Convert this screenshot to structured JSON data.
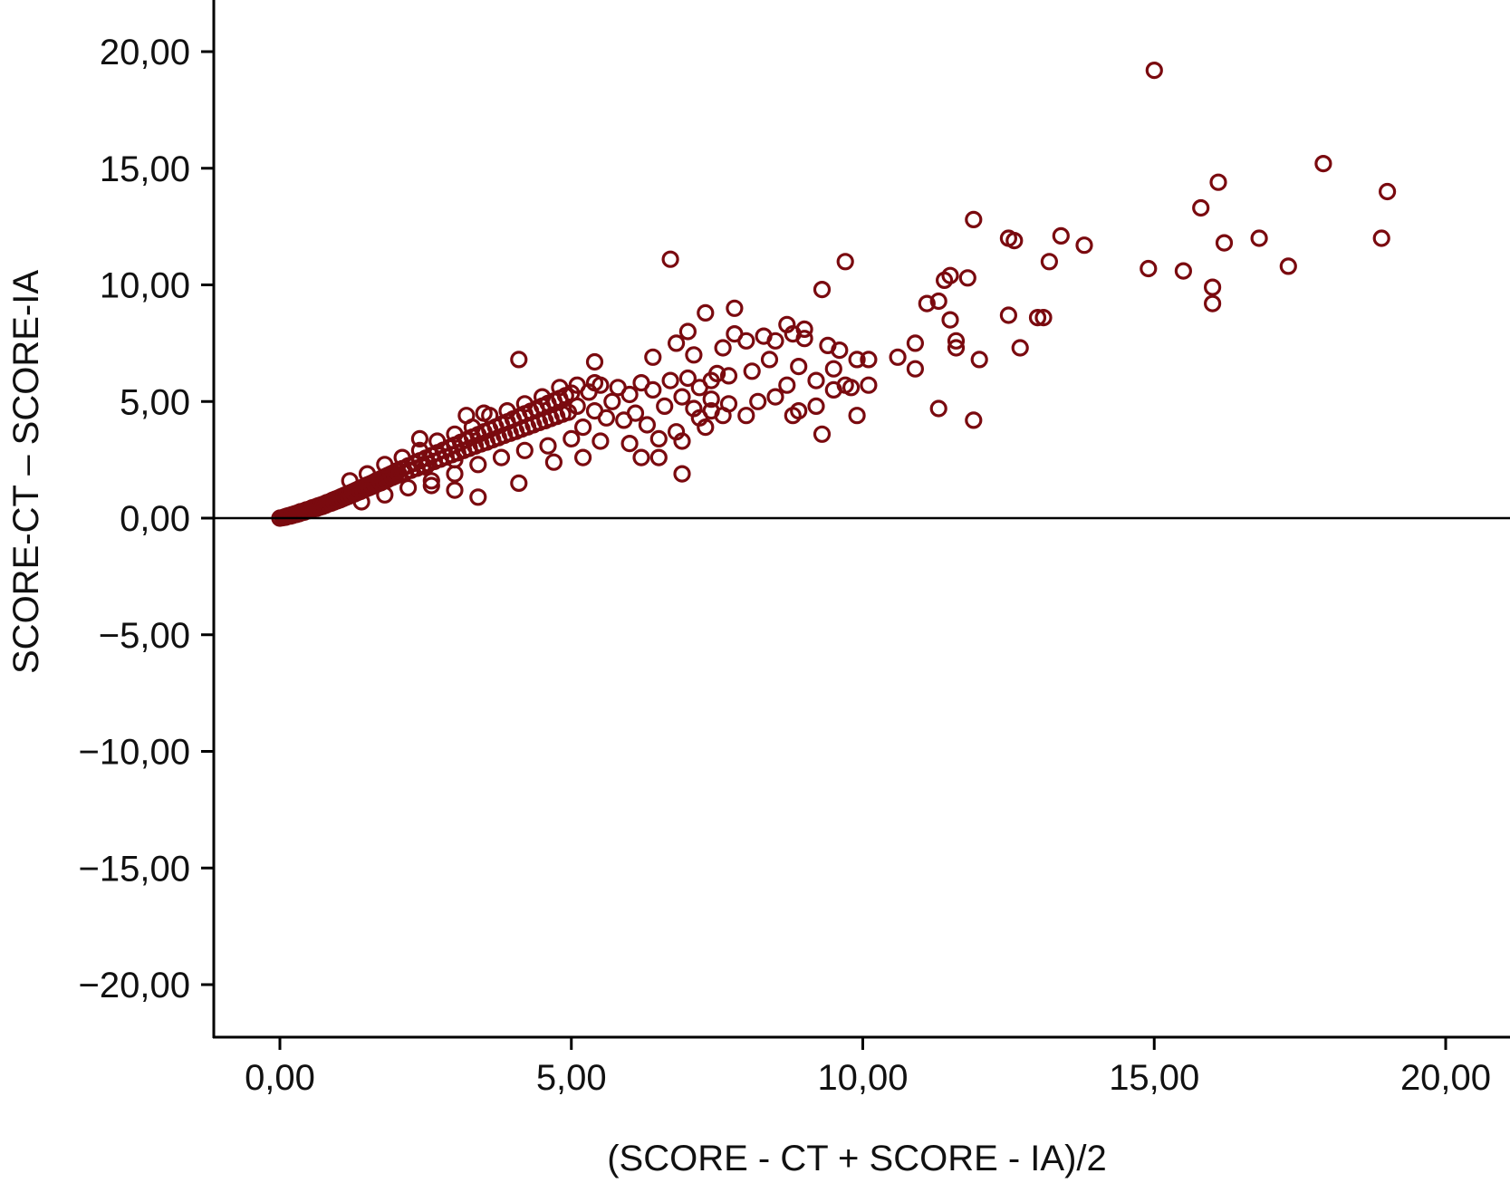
{
  "chart_data": {
    "type": "scatter",
    "title": "",
    "xlabel": "(SCORE - CT + SCORE - IA)/2",
    "ylabel": "SCORE-CT – SCORE-IA",
    "xlim": [
      -1.1,
      21.1
    ],
    "ylim": [
      -22.2,
      22.2
    ],
    "x_ticks": [
      {
        "value": 0,
        "label": "0,00"
      },
      {
        "value": 5,
        "label": "5,00"
      },
      {
        "value": 10,
        "label": "10,00"
      },
      {
        "value": 15,
        "label": "15,00"
      },
      {
        "value": 20,
        "label": "20,00"
      }
    ],
    "y_ticks": [
      {
        "value": 20,
        "label": "20,00"
      },
      {
        "value": 15,
        "label": "15,00"
      },
      {
        "value": 10,
        "label": "10,00"
      },
      {
        "value": 5,
        "label": "5,00"
      },
      {
        "value": 0,
        "label": "0,00"
      },
      {
        "value": -5,
        "label": "−5,00"
      },
      {
        "value": -10,
        "label": "−10,00"
      },
      {
        "value": -15,
        "label": "−15,00"
      },
      {
        "value": -20,
        "label": "−20,00"
      }
    ],
    "reference_line": {
      "y": 0
    },
    "marker": "open-circle",
    "marker_color": "#7a0a0f",
    "grid": false,
    "legend": "none",
    "points": [
      [
        0.0,
        0.0
      ],
      [
        0.05,
        0.02
      ],
      [
        0.08,
        0.05
      ],
      [
        0.1,
        0.04
      ],
      [
        0.12,
        0.08
      ],
      [
        0.15,
        0.1
      ],
      [
        0.18,
        0.09
      ],
      [
        0.2,
        0.14
      ],
      [
        0.22,
        0.12
      ],
      [
        0.25,
        0.18
      ],
      [
        0.28,
        0.16
      ],
      [
        0.3,
        0.22
      ],
      [
        0.33,
        0.19
      ],
      [
        0.35,
        0.27
      ],
      [
        0.38,
        0.24
      ],
      [
        0.4,
        0.3
      ],
      [
        0.42,
        0.26
      ],
      [
        0.45,
        0.35
      ],
      [
        0.48,
        0.31
      ],
      [
        0.5,
        0.38
      ],
      [
        0.53,
        0.34
      ],
      [
        0.55,
        0.44
      ],
      [
        0.58,
        0.4
      ],
      [
        0.6,
        0.47
      ],
      [
        0.63,
        0.42
      ],
      [
        0.65,
        0.52
      ],
      [
        0.68,
        0.47
      ],
      [
        0.7,
        0.56
      ],
      [
        0.73,
        0.5
      ],
      [
        0.75,
        0.6
      ],
      [
        0.78,
        0.55
      ],
      [
        0.8,
        0.66
      ],
      [
        0.83,
        0.61
      ],
      [
        0.85,
        0.7
      ],
      [
        0.88,
        0.64
      ],
      [
        0.9,
        0.76
      ],
      [
        0.93,
        0.69
      ],
      [
        0.95,
        0.81
      ],
      [
        0.98,
        0.74
      ],
      [
        1.0,
        0.86
      ],
      [
        1.03,
        0.78
      ],
      [
        1.05,
        0.92
      ],
      [
        1.08,
        0.84
      ],
      [
        1.1,
        0.97
      ],
      [
        1.13,
        0.89
      ],
      [
        1.15,
        1.02
      ],
      [
        1.18,
        0.94
      ],
      [
        1.2,
        1.08
      ],
      [
        1.23,
        0.99
      ],
      [
        1.25,
        1.13
      ],
      [
        1.28,
        1.04
      ],
      [
        1.3,
        1.19
      ],
      [
        1.33,
        1.1
      ],
      [
        1.35,
        1.25
      ],
      [
        1.38,
        1.14
      ],
      [
        1.4,
        1.3
      ],
      [
        1.43,
        1.2
      ],
      [
        1.45,
        1.36
      ],
      [
        1.48,
        1.26
      ],
      [
        1.5,
        1.42
      ],
      [
        1.53,
        1.31
      ],
      [
        1.55,
        1.47
      ],
      [
        1.58,
        1.36
      ],
      [
        1.6,
        1.53
      ],
      [
        1.63,
        1.43
      ],
      [
        1.65,
        1.6
      ],
      [
        1.68,
        1.47
      ],
      [
        1.7,
        1.65
      ],
      [
        1.73,
        1.52
      ],
      [
        1.75,
        1.71
      ],
      [
        1.78,
        1.58
      ],
      [
        1.8,
        1.77
      ],
      [
        1.83,
        1.63
      ],
      [
        1.85,
        1.83
      ],
      [
        1.88,
        1.7
      ],
      [
        1.9,
        1.89
      ],
      [
        1.93,
        1.75
      ],
      [
        1.95,
        1.95
      ],
      [
        1.98,
        1.8
      ],
      [
        2.0,
        2.02
      ],
      [
        2.05,
        1.86
      ],
      [
        2.1,
        2.12
      ],
      [
        2.15,
        1.96
      ],
      [
        2.2,
        2.24
      ],
      [
        2.25,
        2.05
      ],
      [
        2.3,
        2.35
      ],
      [
        2.35,
        2.14
      ],
      [
        2.4,
        2.46
      ],
      [
        2.45,
        2.24
      ],
      [
        2.5,
        2.57
      ],
      [
        2.55,
        2.33
      ],
      [
        2.6,
        2.68
      ],
      [
        2.65,
        2.43
      ],
      [
        2.7,
        2.8
      ],
      [
        2.75,
        2.53
      ],
      [
        2.8,
        2.91
      ],
      [
        2.85,
        2.62
      ],
      [
        2.9,
        3.02
      ],
      [
        2.95,
        2.72
      ],
      [
        3.0,
        3.13
      ],
      [
        3.05,
        2.8
      ],
      [
        3.1,
        3.25
      ],
      [
        3.15,
        2.9
      ],
      [
        3.2,
        3.36
      ],
      [
        3.25,
        2.99
      ],
      [
        3.3,
        3.47
      ],
      [
        3.35,
        3.09
      ],
      [
        3.4,
        3.58
      ],
      [
        3.45,
        3.18
      ],
      [
        3.5,
        3.7
      ],
      [
        3.55,
        3.26
      ],
      [
        3.6,
        3.8
      ],
      [
        3.65,
        3.36
      ],
      [
        3.7,
        3.91
      ],
      [
        3.75,
        3.45
      ],
      [
        3.8,
        4.02
      ],
      [
        3.85,
        3.55
      ],
      [
        3.9,
        4.13
      ],
      [
        3.95,
        3.64
      ],
      [
        4.0,
        4.25
      ],
      [
        4.05,
        3.72
      ],
      [
        4.1,
        4.35
      ],
      [
        4.15,
        3.82
      ],
      [
        4.2,
        4.47
      ],
      [
        4.25,
        3.91
      ],
      [
        4.3,
        4.58
      ],
      [
        4.35,
        4.0
      ],
      [
        4.4,
        4.69
      ],
      [
        4.45,
        4.1
      ],
      [
        4.5,
        4.8
      ],
      [
        4.55,
        4.18
      ],
      [
        4.6,
        4.92
      ],
      [
        4.65,
        4.27
      ],
      [
        4.7,
        5.02
      ],
      [
        4.75,
        4.36
      ],
      [
        4.8,
        5.13
      ],
      [
        4.85,
        4.46
      ],
      [
        4.9,
        5.25
      ],
      [
        4.95,
        4.54
      ],
      [
        5.0,
        5.36
      ],
      [
        1.2,
        1.6
      ],
      [
        1.5,
        1.9
      ],
      [
        1.8,
        2.3
      ],
      [
        2.1,
        2.6
      ],
      [
        2.4,
        2.9
      ],
      [
        2.7,
        3.3
      ],
      [
        3.0,
        3.6
      ],
      [
        3.3,
        3.9
      ],
      [
        3.6,
        4.4
      ],
      [
        3.9,
        4.6
      ],
      [
        4.2,
        4.9
      ],
      [
        4.5,
        5.2
      ],
      [
        4.8,
        5.6
      ],
      [
        5.1,
        5.7
      ],
      [
        5.4,
        5.8
      ],
      [
        1.4,
        0.7
      ],
      [
        1.8,
        1.0
      ],
      [
        2.2,
        1.3
      ],
      [
        2.6,
        1.6
      ],
      [
        3.0,
        1.9
      ],
      [
        3.4,
        2.3
      ],
      [
        3.8,
        2.6
      ],
      [
        4.2,
        2.9
      ],
      [
        4.6,
        3.1
      ],
      [
        5.0,
        3.4
      ],
      [
        2.4,
        3.4
      ],
      [
        3.2,
        4.4
      ],
      [
        3.5,
        4.5
      ],
      [
        2.5,
        2.2
      ],
      [
        3.0,
        2.5
      ],
      [
        5.1,
        4.8
      ],
      [
        5.2,
        3.9
      ],
      [
        5.3,
        5.4
      ],
      [
        5.4,
        4.6
      ],
      [
        5.5,
        5.7
      ],
      [
        5.6,
        4.3
      ],
      [
        5.7,
        5.0
      ],
      [
        5.8,
        5.6
      ],
      [
        5.9,
        4.2
      ],
      [
        6.0,
        5.3
      ],
      [
        6.1,
        4.5
      ],
      [
        6.2,
        5.8
      ],
      [
        6.3,
        4.0
      ],
      [
        6.4,
        5.5
      ],
      [
        6.5,
        3.4
      ],
      [
        6.6,
        4.8
      ],
      [
        6.7,
        5.9
      ],
      [
        6.8,
        3.7
      ],
      [
        6.9,
        5.2
      ],
      [
        7.0,
        6.0
      ],
      [
        7.1,
        4.7
      ],
      [
        7.2,
        5.6
      ],
      [
        7.3,
        3.9
      ],
      [
        7.4,
        5.1
      ],
      [
        7.5,
        6.2
      ],
      [
        6.7,
        11.1
      ],
      [
        4.1,
        6.8
      ],
      [
        5.4,
        6.7
      ],
      [
        6.4,
        6.9
      ],
      [
        7.3,
        8.8
      ],
      [
        7.8,
        9.0
      ],
      [
        8.7,
        8.3
      ],
      [
        9.0,
        8.1
      ],
      [
        7.0,
        8.0
      ],
      [
        6.8,
        7.5
      ],
      [
        7.1,
        7.0
      ],
      [
        7.6,
        7.3
      ],
      [
        7.8,
        7.9
      ],
      [
        8.0,
        7.6
      ],
      [
        8.3,
        7.8
      ],
      [
        8.5,
        7.6
      ],
      [
        8.8,
        7.9
      ],
      [
        9.3,
        9.8
      ],
      [
        9.7,
        11.0
      ],
      [
        9.0,
        7.7
      ],
      [
        9.4,
        7.4
      ],
      [
        9.6,
        7.2
      ],
      [
        9.9,
        6.8
      ],
      [
        10.1,
        6.8
      ],
      [
        10.6,
        6.9
      ],
      [
        10.9,
        7.5
      ],
      [
        10.9,
        6.4
      ],
      [
        11.3,
        9.3
      ],
      [
        11.5,
        10.4
      ],
      [
        11.8,
        10.3
      ],
      [
        11.5,
        8.5
      ],
      [
        11.6,
        7.6
      ],
      [
        11.6,
        7.3
      ],
      [
        12.0,
        6.8
      ],
      [
        11.9,
        12.8
      ],
      [
        12.5,
        12.0
      ],
      [
        12.6,
        11.9
      ],
      [
        12.5,
        8.7
      ],
      [
        12.7,
        7.3
      ],
      [
        13.0,
        8.6
      ],
      [
        13.1,
        8.6
      ],
      [
        13.2,
        11.0
      ],
      [
        13.4,
        12.1
      ],
      [
        13.8,
        11.7
      ],
      [
        11.3,
        4.7
      ],
      [
        11.9,
        4.2
      ],
      [
        11.4,
        10.2
      ],
      [
        11.1,
        9.2
      ],
      [
        10.1,
        5.7
      ],
      [
        9.7,
        5.7
      ],
      [
        9.3,
        3.6
      ],
      [
        9.9,
        4.4
      ],
      [
        9.2,
        4.8
      ],
      [
        9.5,
        5.5
      ],
      [
        8.9,
        4.6
      ],
      [
        8.8,
        4.4
      ],
      [
        8.0,
        4.4
      ],
      [
        7.6,
        4.4
      ],
      [
        8.2,
        5.0
      ],
      [
        8.5,
        5.2
      ],
      [
        8.7,
        5.7
      ],
      [
        8.9,
        6.5
      ],
      [
        9.2,
        5.9
      ],
      [
        9.5,
        6.4
      ],
      [
        9.8,
        5.6
      ],
      [
        7.4,
        5.9
      ],
      [
        7.7,
        6.1
      ],
      [
        8.1,
        6.3
      ],
      [
        8.4,
        6.8
      ],
      [
        7.7,
        4.9
      ],
      [
        7.4,
        4.6
      ],
      [
        7.2,
        4.3
      ],
      [
        6.9,
        3.3
      ],
      [
        6.9,
        1.9
      ],
      [
        6.0,
        3.2
      ],
      [
        6.2,
        2.6
      ],
      [
        6.5,
        2.6
      ],
      [
        5.5,
        3.3
      ],
      [
        5.2,
        2.6
      ],
      [
        4.7,
        2.4
      ],
      [
        4.1,
        1.5
      ],
      [
        3.4,
        0.9
      ],
      [
        3.0,
        1.2
      ],
      [
        2.6,
        1.4
      ],
      [
        15.0,
        19.2
      ],
      [
        17.9,
        15.2
      ],
      [
        16.1,
        14.4
      ],
      [
        19.0,
        14.0
      ],
      [
        15.8,
        13.3
      ],
      [
        16.8,
        12.0
      ],
      [
        18.9,
        12.0
      ],
      [
        16.2,
        11.8
      ],
      [
        14.9,
        10.7
      ],
      [
        15.5,
        10.6
      ],
      [
        17.3,
        10.8
      ],
      [
        16.0,
        9.9
      ],
      [
        16.0,
        9.2
      ]
    ]
  }
}
